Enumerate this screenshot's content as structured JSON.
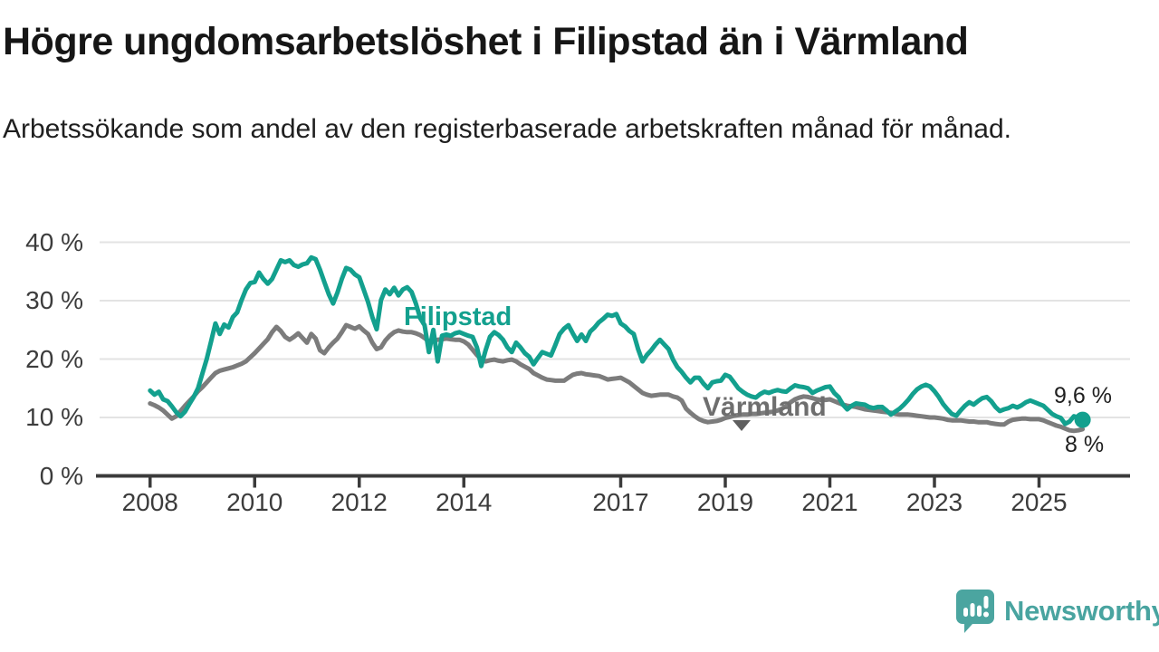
{
  "header": {
    "title": "Högre ungdomsarbetslöshet i Filipstad än i Värmland",
    "subtitle": "Arbetssökande som andel av den registerbaserade arbetskraften månad för månad."
  },
  "branding": {
    "name": "Newsworthy",
    "icon": "speech-bubble-bar-chart-icon",
    "color": "#49a4a0"
  },
  "colors": {
    "filipstad_line": "#13a08e",
    "varmland_line": "#7c7c7c",
    "gridline": "#e3e3e3",
    "axis": "#3b3b3b"
  },
  "chart_data": {
    "type": "line",
    "title": "Högre ungdomsarbetslöshet i Filipstad än i Värmland",
    "subtitle": "Arbetssökande som andel av den registerbaserade arbetskraften månad för månad.",
    "unit": "%",
    "frequency": "monthly",
    "start_year": 2008,
    "start_month": 1,
    "end_year": 2025,
    "end_month": 11,
    "grid": "horizontal-only",
    "x_axis": {
      "range_years": [
        2007.0,
        2026.8
      ],
      "ticks": [
        2008,
        2010,
        2012,
        2014,
        2017,
        2019,
        2021,
        2023,
        2025
      ],
      "tick_labels": [
        "2008",
        "2010",
        "2012",
        "2014",
        "2017",
        "2019",
        "2021",
        "2023",
        "2025"
      ]
    },
    "y_axis": {
      "range": [
        0,
        42
      ],
      "tick_values": [
        0,
        10,
        20,
        30,
        40
      ],
      "tick_labels": [
        "0 %",
        "10 %",
        "20 %",
        "30 %",
        "40 %"
      ]
    },
    "series": [
      {
        "name": "Filipstad",
        "color": "#13a08e",
        "end_label": "9,6 %",
        "end_value": 9.6,
        "end_dot": true,
        "values": [
          14.6,
          13.9,
          14.4,
          13.1,
          12.8,
          11.9,
          10.9,
          10.2,
          11.0,
          12.3,
          13.5,
          15.0,
          17.5,
          20.0,
          23.0,
          26.1,
          24.3,
          25.9,
          25.4,
          27.2,
          28.0,
          30.1,
          31.9,
          33.0,
          33.2,
          34.8,
          33.7,
          32.9,
          33.7,
          35.3,
          36.9,
          36.6,
          36.9,
          36.1,
          35.8,
          36.2,
          36.4,
          37.4,
          37.1,
          35.3,
          33.2,
          31.1,
          29.5,
          31.4,
          33.7,
          35.6,
          35.3,
          34.5,
          34.0,
          31.9,
          29.8,
          27.2,
          25.1,
          30.1,
          31.9,
          31.1,
          32.2,
          30.9,
          31.9,
          32.3,
          31.5,
          29.5,
          27.0,
          25.8,
          21.2,
          25.0,
          19.6,
          24.0,
          24.2,
          24.0,
          24.4,
          24.6,
          24.3,
          24.0,
          23.8,
          22.0,
          18.8,
          21.5,
          23.8,
          24.6,
          24.1,
          23.3,
          22.0,
          21.2,
          22.8,
          22.0,
          21.0,
          20.4,
          19.1,
          20.2,
          21.2,
          20.9,
          20.6,
          22.4,
          24.3,
          25.2,
          25.8,
          24.4,
          23.1,
          24.2,
          23.1,
          24.7,
          25.4,
          26.3,
          26.9,
          27.6,
          27.4,
          27.7,
          26.1,
          25.6,
          24.8,
          24.3,
          21.7,
          19.6,
          20.7,
          21.5,
          22.5,
          23.3,
          22.5,
          21.7,
          19.9,
          18.6,
          17.8,
          16.8,
          16.0,
          16.8,
          16.8,
          15.8,
          15.0,
          16.0,
          16.2,
          16.3,
          17.3,
          17.0,
          16.0,
          15.0,
          14.4,
          13.9,
          13.6,
          13.4,
          14.0,
          14.4,
          14.2,
          14.5,
          14.7,
          14.5,
          14.4,
          15.0,
          15.5,
          15.3,
          15.2,
          15.0,
          14.2,
          14.6,
          14.9,
          15.2,
          15.3,
          14.2,
          13.5,
          12.2,
          11.4,
          12.0,
          12.4,
          12.3,
          12.2,
          11.8,
          11.6,
          11.8,
          11.8,
          11.2,
          10.5,
          11.0,
          11.5,
          12.2,
          13.0,
          14.0,
          14.8,
          15.3,
          15.6,
          15.3,
          14.5,
          13.5,
          12.3,
          11.4,
          10.6,
          10.3,
          11.2,
          12.0,
          12.6,
          12.2,
          12.8,
          13.3,
          13.5,
          12.8,
          11.8,
          11.1,
          11.4,
          11.6,
          12.0,
          11.7,
          12.1,
          12.6,
          12.9,
          12.6,
          12.3,
          12.0,
          11.3,
          10.6,
          10.2,
          9.9,
          8.9,
          9.3,
          10.2,
          10.0,
          9.6
        ]
      },
      {
        "name": "Värmland",
        "color": "#7c7c7c",
        "end_label": "8 %",
        "end_value": 8.0,
        "end_dot": false,
        "values": [
          12.4,
          12.1,
          11.7,
          11.2,
          10.5,
          9.8,
          10.2,
          11.1,
          12.0,
          12.8,
          13.6,
          14.5,
          15.2,
          16.0,
          16.8,
          17.6,
          18.0,
          18.2,
          18.4,
          18.6,
          18.9,
          19.2,
          19.6,
          20.3,
          21.0,
          21.8,
          22.6,
          23.4,
          24.6,
          25.5,
          24.8,
          23.8,
          23.3,
          23.8,
          24.4,
          23.6,
          22.8,
          24.3,
          23.5,
          21.5,
          21.0,
          22.0,
          22.8,
          23.5,
          24.6,
          25.8,
          25.5,
          25.2,
          25.6,
          24.9,
          24.3,
          22.8,
          21.7,
          22.0,
          23.2,
          24.0,
          24.6,
          24.9,
          24.7,
          24.6,
          24.6,
          24.4,
          24.1,
          23.6,
          23.0,
          23.2,
          23.3,
          23.4,
          23.5,
          23.4,
          23.3,
          23.3,
          23.0,
          22.5,
          21.6,
          20.7,
          20.0,
          19.6,
          19.8,
          19.9,
          19.7,
          19.6,
          19.8,
          19.9,
          19.6,
          19.1,
          18.7,
          18.3,
          17.6,
          17.2,
          16.8,
          16.5,
          16.4,
          16.3,
          16.3,
          16.3,
          16.8,
          17.3,
          17.5,
          17.6,
          17.4,
          17.3,
          17.2,
          17.1,
          16.8,
          16.5,
          16.6,
          16.7,
          16.8,
          16.4,
          16.0,
          15.4,
          14.8,
          14.2,
          13.9,
          13.7,
          13.8,
          13.9,
          13.9,
          13.9,
          13.6,
          13.4,
          12.9,
          11.5,
          10.8,
          10.2,
          9.7,
          9.4,
          9.2,
          9.3,
          9.4,
          9.6,
          9.9,
          10.1,
          10.3,
          10.4,
          10.5,
          10.5,
          10.6,
          10.6,
          10.7,
          10.8,
          10.9,
          11.0,
          11.2,
          11.5,
          12.0,
          12.6,
          13.1,
          13.4,
          13.6,
          13.5,
          13.3,
          13.1,
          13.0,
          13.0,
          13.1,
          12.8,
          12.5,
          12.2,
          12.0,
          11.9,
          11.8,
          11.6,
          11.4,
          11.3,
          11.2,
          11.1,
          11.0,
          10.9,
          10.8,
          10.6,
          10.5,
          10.5,
          10.5,
          10.4,
          10.3,
          10.2,
          10.1,
          10.0,
          10.0,
          9.9,
          9.8,
          9.6,
          9.5,
          9.5,
          9.5,
          9.4,
          9.3,
          9.3,
          9.2,
          9.2,
          9.2,
          9.0,
          8.9,
          8.8,
          8.8,
          9.3,
          9.6,
          9.7,
          9.8,
          9.8,
          9.7,
          9.7,
          9.7,
          9.5,
          9.2,
          8.9,
          8.6,
          8.4,
          8.1,
          7.8,
          7.7,
          7.8,
          8.0
        ]
      }
    ],
    "annotations": {
      "filipstad_label": "Filipstad",
      "varmland_label": "Värmland",
      "varmland_pointer": "down-triangle"
    },
    "legend_position": "inline-labels"
  }
}
